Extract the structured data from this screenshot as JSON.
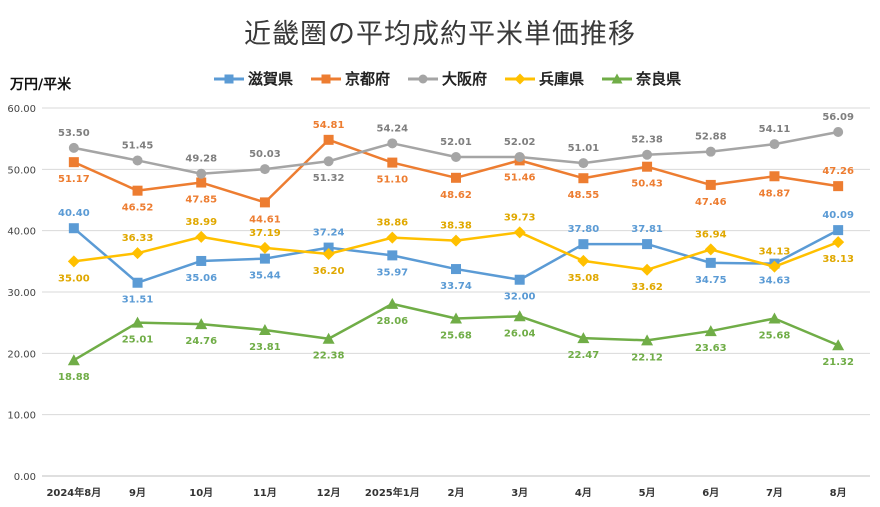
{
  "chart_data": {
    "type": "line",
    "title": "近畿圏の平均成約平米単価推移",
    "ylabel": "万円/平米",
    "xlabel": "",
    "ylim": [
      0,
      60
    ],
    "yticks": [
      "0.00",
      "10.00",
      "20.00",
      "30.00",
      "40.00",
      "50.00",
      "60.00"
    ],
    "categories": [
      "2024年8月",
      "9月",
      "10月",
      "11月",
      "12月",
      "2025年1月",
      "2月",
      "3月",
      "4月",
      "5月",
      "6月",
      "7月",
      "8月"
    ],
    "legend_position": "top",
    "grid": true,
    "series": [
      {
        "name": "滋賀県",
        "color": "#5B9BD5",
        "marker": "square",
        "values": [
          40.4,
          31.51,
          35.06,
          35.44,
          37.24,
          35.97,
          33.74,
          32.0,
          37.8,
          37.81,
          34.75,
          34.63,
          40.09
        ],
        "labels": [
          "40.40",
          "31.51",
          "35.06",
          "35.44",
          "37.24",
          "35.97",
          "33.74",
          "32.00",
          "37.80",
          "37.81",
          "34.75",
          "34.63",
          "40.09"
        ]
      },
      {
        "name": "京都府",
        "color": "#ED7D31",
        "marker": "square",
        "values": [
          51.17,
          46.52,
          47.85,
          44.61,
          54.81,
          51.1,
          48.62,
          51.46,
          48.55,
          50.43,
          47.46,
          48.87,
          47.26
        ],
        "labels": [
          "51.17",
          "46.52",
          "47.85",
          "44.61",
          "54.81",
          "51.10",
          "48.62",
          "51.46",
          "48.55",
          "50.43",
          "47.46",
          "48.87",
          "47.26"
        ]
      },
      {
        "name": "大阪府",
        "color": "#A5A5A5",
        "marker": "circle",
        "values": [
          53.5,
          51.45,
          49.28,
          50.03,
          51.32,
          54.24,
          52.01,
          52.02,
          51.01,
          52.38,
          52.88,
          54.11,
          56.09
        ],
        "labels": [
          "53.50",
          "51.45",
          "49.28",
          "50.03",
          "51.32",
          "54.24",
          "52.01",
          "52.02",
          "51.01",
          "52.38",
          "52.88",
          "54.11",
          "56.09"
        ]
      },
      {
        "name": "兵庫県",
        "color": "#FFC000",
        "marker": "diamond",
        "values": [
          35.0,
          36.33,
          38.99,
          37.19,
          36.2,
          38.86,
          38.38,
          39.73,
          35.08,
          33.62,
          36.94,
          34.13,
          38.13
        ],
        "labels": [
          "35.00",
          "36.33",
          "38.99",
          "37.19",
          "36.20",
          "38.86",
          "38.38",
          "39.73",
          "35.08",
          "33.62",
          "36.94",
          "34.13",
          "38.13"
        ]
      },
      {
        "name": "奈良県",
        "color": "#70AD47",
        "marker": "triangle",
        "values": [
          18.88,
          25.01,
          24.76,
          23.81,
          22.38,
          28.06,
          25.68,
          26.04,
          22.47,
          22.12,
          23.63,
          25.68,
          21.32
        ],
        "labels": [
          "18.88",
          "25.01",
          "24.76",
          "23.81",
          "22.38",
          "28.06",
          "25.68",
          "26.04",
          "22.47",
          "22.12",
          "23.63",
          "25.68",
          "21.32"
        ]
      }
    ]
  }
}
